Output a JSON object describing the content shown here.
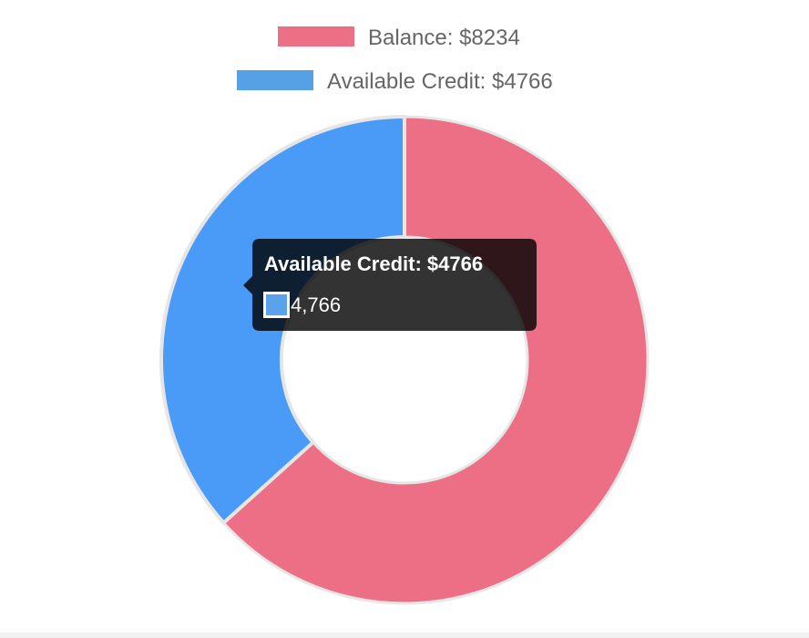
{
  "chart_data": {
    "type": "pie",
    "variant": "doughnut",
    "categories": [
      "Balance: $8234",
      "Available Credit: $4766"
    ],
    "values": [
      8234,
      4766
    ],
    "colors": [
      "#ec6f86",
      "#4a9bf8"
    ],
    "legend_placement": "top",
    "legend": [
      {
        "label": "Balance: $8234",
        "color": "#ec6f86"
      },
      {
        "label": "Available Credit: $4766",
        "color": "#56a0e6"
      }
    ],
    "tooltip": {
      "title": "Available Credit: $4766",
      "value_text": "4,766",
      "swatch_color": "#5aa3ea"
    }
  }
}
